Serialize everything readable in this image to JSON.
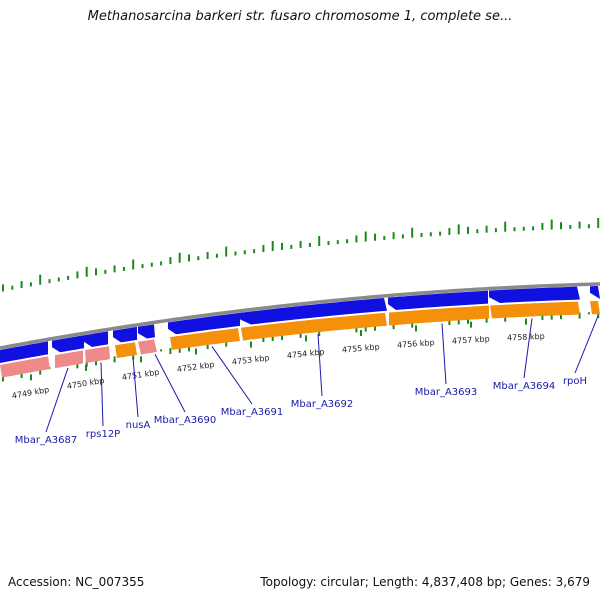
{
  "title": "Methanosarcina barkeri str. fusaro chromosome 1, complete se...",
  "footer": {
    "accession": "Accession: NC_007355",
    "summary": "Topology: circular; Length: 4,837,408 bp; Genes: 3,679"
  },
  "colors": {
    "forward_gene": "#1010e0",
    "reverse_orange": "#f5900a",
    "reverse_pink": "#ef8a8a",
    "backbone": "#8a8a8a",
    "gc_ticks": "#1a8a1a",
    "label": "#1a1aa8"
  },
  "ticks": [
    {
      "label": "4749 kbp"
    },
    {
      "label": "4750 kbp"
    },
    {
      "label": "4751 kbp"
    },
    {
      "label": "4752 kbp"
    },
    {
      "label": "4753 kbp"
    },
    {
      "label": "4754 kbp"
    },
    {
      "label": "4755 kbp"
    },
    {
      "label": "4756 kbp"
    },
    {
      "label": "4757 kbp"
    },
    {
      "label": "4758 kbp"
    }
  ],
  "genes": [
    {
      "name": "Mbar_A3687"
    },
    {
      "name": "rps12P"
    },
    {
      "name": "nusA"
    },
    {
      "name": "Mbar_A3690"
    },
    {
      "name": "Mbar_A3691"
    },
    {
      "name": "Mbar_A3692"
    },
    {
      "name": "Mbar_A3693"
    },
    {
      "name": "Mbar_A3694"
    },
    {
      "name": "rpoH"
    }
  ]
}
